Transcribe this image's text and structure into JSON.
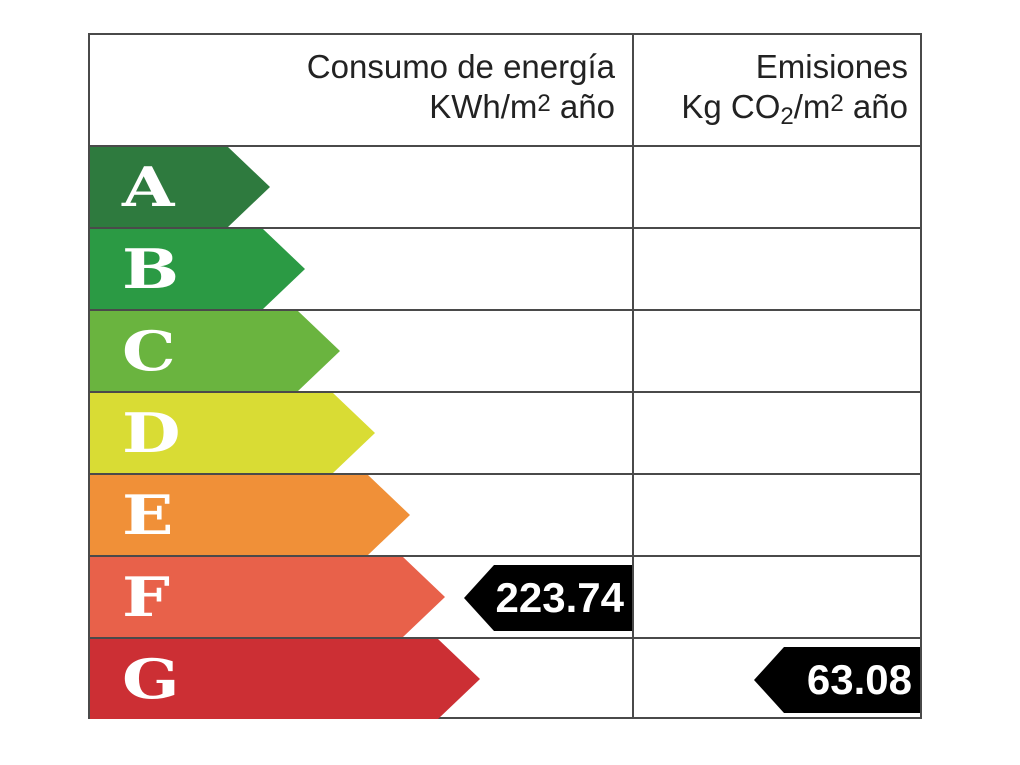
{
  "headers": {
    "energy_line1": "Consumo de energía",
    "energy_line2_pre": "KWh/m",
    "energy_line2_sup": "2",
    "energy_line2_post": " año",
    "emissions_line1": "Emisiones",
    "emissions_line2_pre": "Kg CO",
    "emissions_line2_sub": "2",
    "emissions_line2_mid": "/m",
    "emissions_line2_sup": "2",
    "emissions_line2_post": " año"
  },
  "bands": [
    {
      "letter": "A",
      "color": "#2e7a3e"
    },
    {
      "letter": "B",
      "color": "#2b9a44"
    },
    {
      "letter": "C",
      "color": "#6ab43f"
    },
    {
      "letter": "D",
      "color": "#d9dc34"
    },
    {
      "letter": "E",
      "color": "#f09038"
    },
    {
      "letter": "F",
      "color": "#e8614a"
    },
    {
      "letter": "G",
      "color": "#cc2f34"
    }
  ],
  "energy_rating": {
    "value": "223.74",
    "band": "F"
  },
  "emissions_rating": {
    "value": "63.08",
    "band": "G"
  }
}
